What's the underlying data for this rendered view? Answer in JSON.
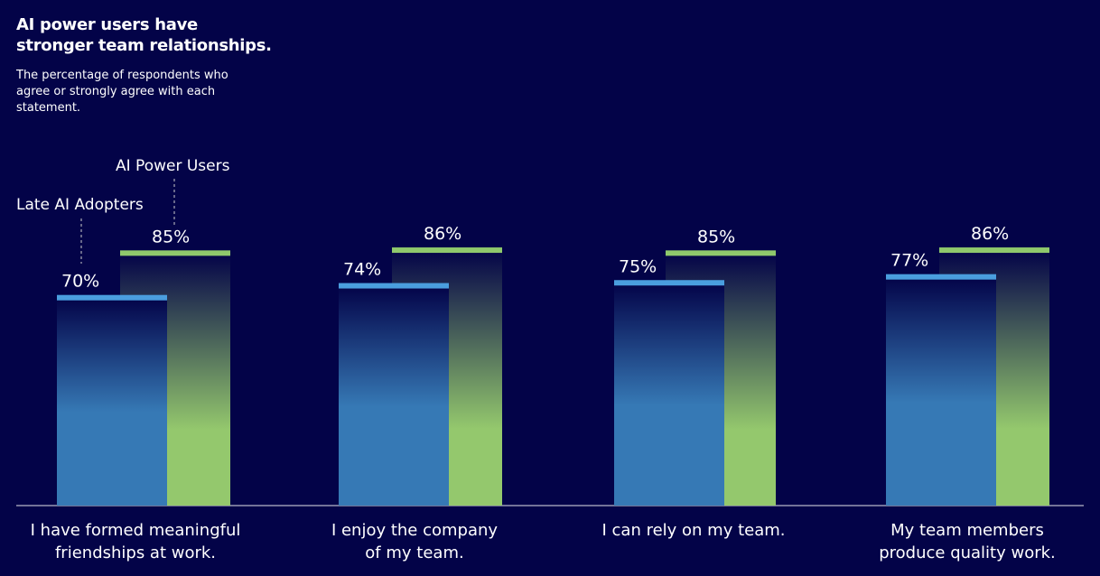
{
  "chart_data": {
    "type": "bar",
    "title": "AI power users have stronger team relationships.",
    "subtitle": "The percentage of respondents who agree or strongly agree with each statement.",
    "categories": [
      "I have formed meaningful friendships at work.",
      "I enjoy the company of my team.",
      "I can rely on my team.",
      "My team members produce quality work."
    ],
    "series": [
      {
        "name": "Late AI Adopters",
        "color": "#4a9ede",
        "values": [
          70,
          74,
          75,
          77
        ],
        "value_labels": [
          "70%",
          "74%",
          "75%",
          "77%"
        ]
      },
      {
        "name": "AI Power Users",
        "color": "#8fc96c",
        "values": [
          85,
          86,
          85,
          86
        ],
        "value_labels": [
          "85%",
          "86%",
          "85%",
          "86%"
        ]
      }
    ]
  }
}
